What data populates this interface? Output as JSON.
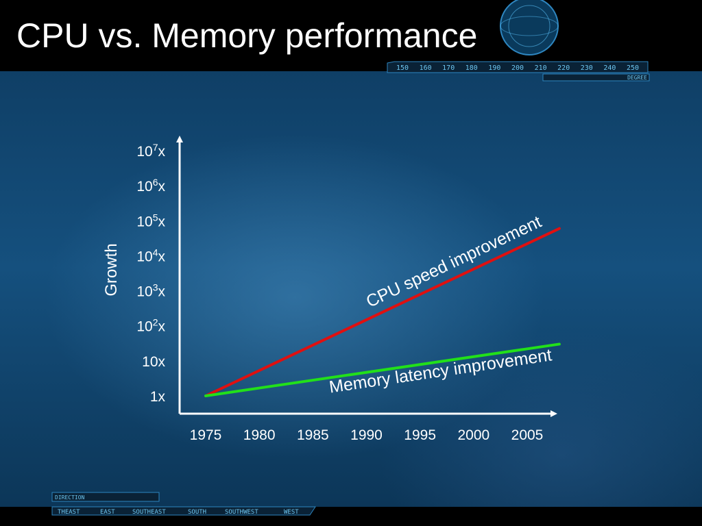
{
  "slide": {
    "title": "CPU vs. Memory performance"
  },
  "decor": {
    "top_scale_labels": [
      "150",
      "160",
      "170",
      "180",
      "190",
      "200",
      "210",
      "220",
      "230",
      "240",
      "250"
    ],
    "top_scale_unit": "DEGREE",
    "bottom_caption": "DIRECTION",
    "bottom_directions": [
      "THEAST",
      "EAST",
      "SOUTHEAST",
      "SOUTH",
      "SOUTHWEST",
      "WEST"
    ]
  },
  "colors": {
    "cpu_line": "#e01010",
    "memory_line": "#22e01a",
    "axis": "#ffffff",
    "text": "#ffffff",
    "hud": "#6ec6f0"
  },
  "chart_data": {
    "type": "line",
    "title": "",
    "xlabel": "",
    "ylabel": "Growth",
    "y_scale": "log10",
    "x_ticks": [
      1975,
      1980,
      1985,
      1990,
      1995,
      2000,
      2005
    ],
    "y_ticks": [
      {
        "base": "1x",
        "exp": ""
      },
      {
        "base": "10x",
        "exp": ""
      },
      {
        "base": "10",
        "exp": "2",
        "suffix": "x"
      },
      {
        "base": "10",
        "exp": "3",
        "suffix": "x"
      },
      {
        "base": "10",
        "exp": "4",
        "suffix": "x"
      },
      {
        "base": "10",
        "exp": "5",
        "suffix": "x"
      },
      {
        "base": "10",
        "exp": "6",
        "suffix": "x"
      },
      {
        "base": "10",
        "exp": "7",
        "suffix": "x"
      }
    ],
    "xlim": [
      1975,
      2005
    ],
    "ylim": [
      1,
      10000000
    ],
    "series": [
      {
        "name": "CPU speed improvement",
        "x": [
          1975,
          2008
        ],
        "y": [
          1,
          60000
        ],
        "color_key": "cpu_line"
      },
      {
        "name": "Memory latency improvement",
        "x": [
          1975,
          2008
        ],
        "y": [
          1,
          30
        ],
        "color_key": "memory_line"
      }
    ]
  }
}
